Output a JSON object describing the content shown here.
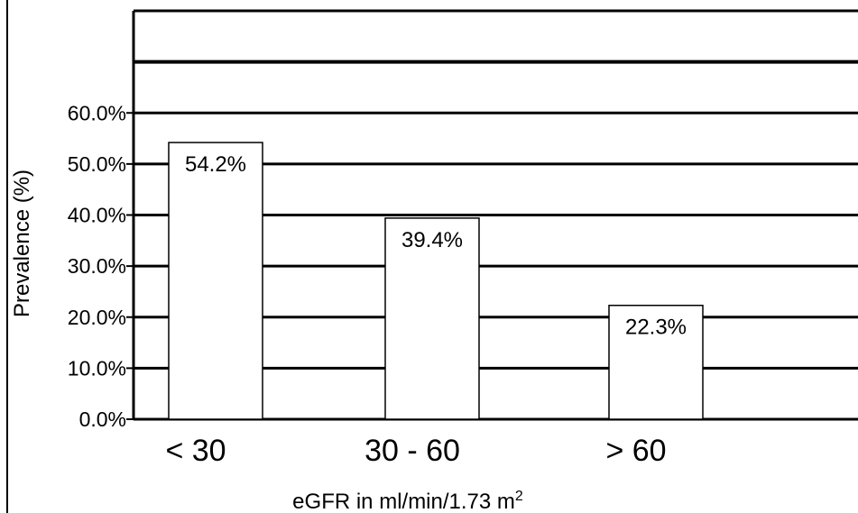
{
  "chart_data": {
    "type": "bar",
    "title": "",
    "categories": [
      "< 30",
      "30 - 60",
      "> 60"
    ],
    "values": [
      54.2,
      39.4,
      22.3
    ],
    "data_labels": [
      "54.2%",
      "39.4%",
      "22.3%"
    ],
    "ylabel": "Prevalence (%)",
    "xlabel": "eGFR in ml/min/1.73 m",
    "xlabel_superscript": "2",
    "ylim": [
      0,
      80
    ],
    "yticks": [
      0,
      10,
      20,
      30,
      40,
      50,
      60
    ],
    "ytick_labels": [
      "0.0%",
      "10.0%",
      "20.0%",
      "30.0%",
      "40.0%",
      "50.0%",
      "60.0%"
    ],
    "grid": true,
    "legend": "none",
    "colors": {
      "bar_fill": "#ffffff",
      "bar_stroke": "#000000",
      "grid": "#000000",
      "background": "#ffffff"
    }
  }
}
